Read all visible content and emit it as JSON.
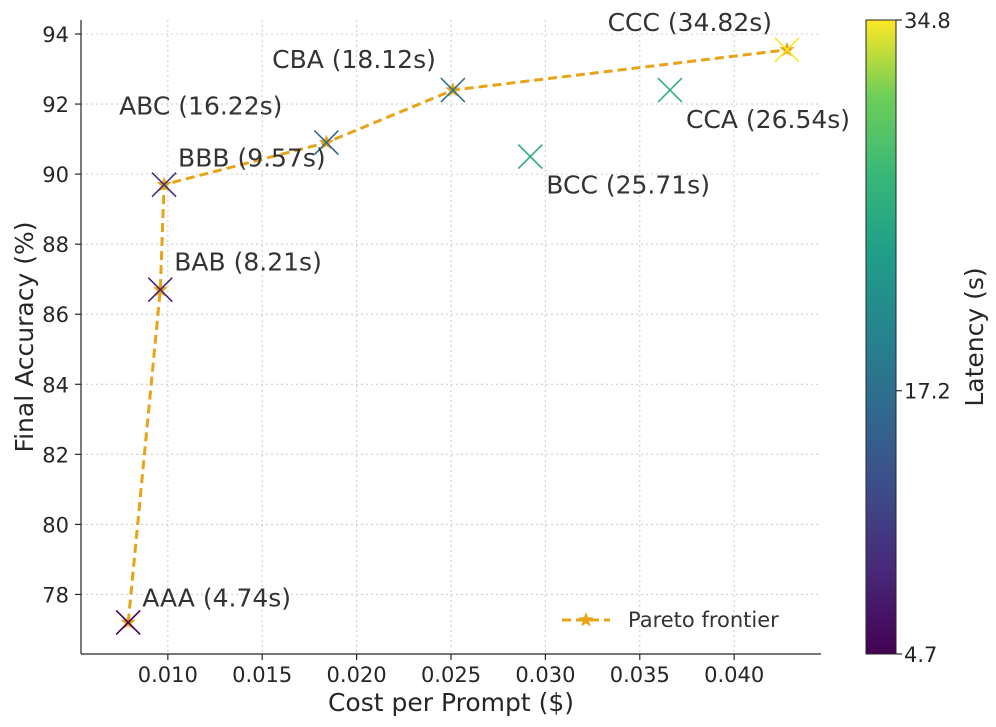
{
  "chart_data": {
    "type": "scatter",
    "title": "",
    "xlabel": "Cost per Prompt ($)",
    "ylabel": "Final Accuracy (%)",
    "xlim": [
      0.0054,
      0.0446
    ],
    "ylim": [
      76.3,
      94.4
    ],
    "xticks": [
      "0.010",
      "0.015",
      "0.020",
      "0.025",
      "0.030",
      "0.035",
      "0.040"
    ],
    "xtick_values": [
      0.01,
      0.015,
      0.02,
      0.025,
      0.03,
      0.035,
      0.04
    ],
    "yticks": [
      "78",
      "80",
      "82",
      "84",
      "86",
      "88",
      "90",
      "92",
      "94"
    ],
    "ytick_values": [
      78,
      80,
      82,
      84,
      86,
      88,
      90,
      92,
      94
    ],
    "grid": true,
    "points": [
      {
        "label": "AAA (4.74s)",
        "x": 0.0079,
        "y": 77.2,
        "latency": 4.74
      },
      {
        "label": "BAB (8.21s)",
        "x": 0.0096,
        "y": 86.7,
        "latency": 8.21
      },
      {
        "label": "BBB (9.57s)",
        "x": 0.0098,
        "y": 89.7,
        "latency": 9.57
      },
      {
        "label": "ABC (16.22s)",
        "x": 0.0184,
        "y": 90.9,
        "latency": 16.22
      },
      {
        "label": "CBA (18.12s)",
        "x": 0.0251,
        "y": 92.4,
        "latency": 18.12
      },
      {
        "label": "BCC (25.71s)",
        "x": 0.0292,
        "y": 90.5,
        "latency": 25.71
      },
      {
        "label": "CCA (26.54s)",
        "x": 0.0366,
        "y": 92.4,
        "latency": 26.54
      },
      {
        "label": "CCC (34.82s)",
        "x": 0.0428,
        "y": 93.55,
        "latency": 34.82
      }
    ],
    "pareto_frontier": {
      "name": "Pareto frontier",
      "color": "#E8A317",
      "x": [
        0.0079,
        0.0096,
        0.0098,
        0.0184,
        0.0251,
        0.0428
      ],
      "y": [
        77.2,
        86.7,
        89.7,
        90.9,
        92.4,
        93.55
      ]
    },
    "legend": {
      "position": "bottom-right",
      "entries": [
        "Pareto frontier"
      ]
    },
    "colorbar": {
      "label": "Latency (s)",
      "min": 4.7,
      "max": 34.8,
      "ticks": [
        "34.8",
        "17.2",
        "4.7"
      ],
      "tick_values": [
        34.8,
        17.2,
        4.7
      ],
      "colormap": "viridis"
    }
  }
}
